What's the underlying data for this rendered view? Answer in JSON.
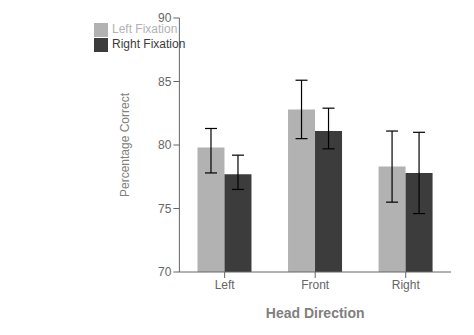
{
  "chart_data": {
    "type": "bar",
    "xlabel": "Head Direction",
    "ylabel": "Percentage Correct",
    "categories": [
      "Left",
      "Front",
      "Right"
    ],
    "series": [
      {
        "name": "Left Fixation",
        "color": "#b2b2b2",
        "values": [
          79.8,
          82.8,
          78.3
        ],
        "error_plus": [
          1.5,
          2.3,
          2.8
        ],
        "error_minus": [
          2.0,
          2.3,
          2.8
        ]
      },
      {
        "name": "Right Fixation",
        "color": "#3c3c3c",
        "values": [
          77.7,
          81.1,
          77.8
        ],
        "error_plus": [
          1.5,
          1.8,
          3.2
        ],
        "error_minus": [
          1.2,
          1.4,
          3.2
        ]
      }
    ],
    "ylim": [
      70,
      90
    ],
    "yticks": [
      70,
      75,
      80,
      85,
      90
    ],
    "grid": false,
    "legend": "upper left"
  }
}
